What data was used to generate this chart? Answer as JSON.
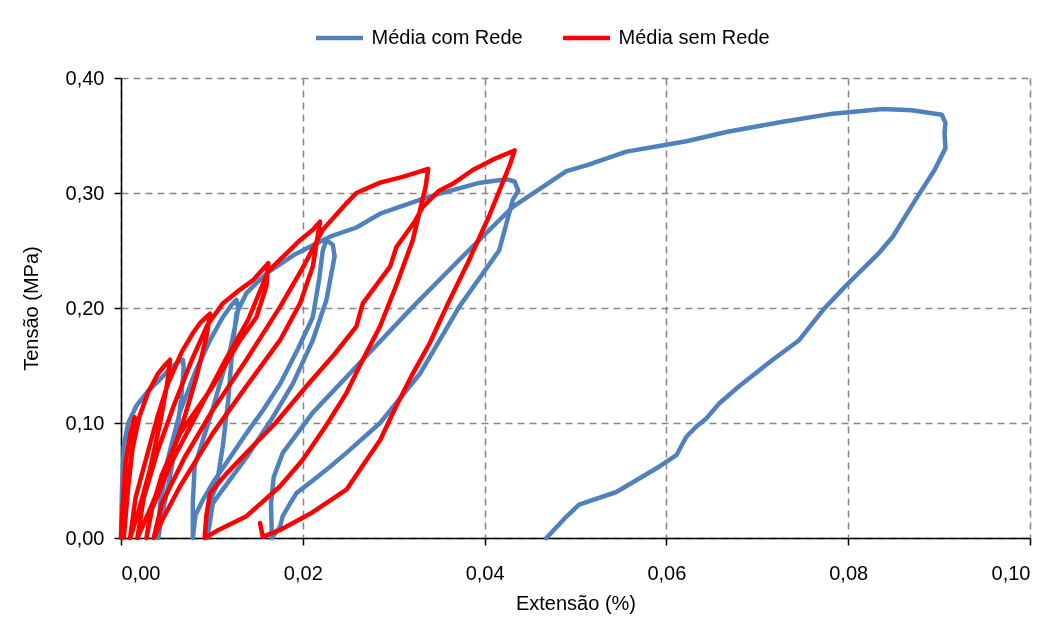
{
  "chart_data": {
    "type": "line",
    "xlabel": "Extensão (%)",
    "ylabel": "Tensão (MPa)",
    "xlim": [
      0,
      0.1
    ],
    "ylim": [
      0,
      0.4
    ],
    "xticks": [
      {
        "value": 0,
        "label": "0,00"
      },
      {
        "value": 0.02,
        "label": "0,02"
      },
      {
        "value": 0.04,
        "label": "0,04"
      },
      {
        "value": 0.06,
        "label": "0,06"
      },
      {
        "value": 0.08,
        "label": "0,08"
      },
      {
        "value": 0.1,
        "label": "0,10"
      }
    ],
    "yticks": [
      {
        "value": 0,
        "label": "0,00"
      },
      {
        "value": 0.1,
        "label": "0,10"
      },
      {
        "value": 0.2,
        "label": "0,20"
      },
      {
        "value": 0.3,
        "label": "0,30"
      },
      {
        "value": 0.4,
        "label": "0,40"
      }
    ],
    "grid": true,
    "legend": "top",
    "line_style": "solid",
    "series": [
      {
        "name": "Média com Rede",
        "color": "#4f81bd",
        "x": [
          0,
          0.0001,
          0.0003,
          0.0008,
          0.0017,
          0.003,
          0.0043,
          0.0055,
          0.0063,
          0.0068,
          0.0069,
          0.0066,
          0.006,
          0.0052,
          0.0045,
          0.0041,
          0.0043,
          0.0052,
          0.0065,
          0.0082,
          0.0098,
          0.0112,
          0.0122,
          0.0127,
          0.0129,
          0.0127,
          0.012,
          0.0112,
          0.01,
          0.009,
          0.0081,
          0.0079,
          0.0079,
          0.0082,
          0.009,
          0.0101,
          0.012,
          0.0138,
          0.0157,
          0.0175,
          0.0195,
          0.0211,
          0.0218,
          0.0222,
          0.0226,
          0.0233,
          0.0235,
          0.0226,
          0.0211,
          0.0189,
          0.0167,
          0.0138,
          0.0109,
          0.0101,
          0.0095,
          0.0097,
          0.0105,
          0.0112,
          0.0118,
          0.0122,
          0.0127,
          0.0138,
          0.016,
          0.019,
          0.0215,
          0.023,
          0.0259,
          0.0285,
          0.034,
          0.0395,
          0.0424,
          0.0433,
          0.0437,
          0.0431,
          0.0416,
          0.0372,
          0.0329,
          0.0285,
          0.0248,
          0.023,
          0.0211,
          0.0193,
          0.0186,
          0.0178,
          0.0175,
          0.0166,
          0.0165,
          0.0168,
          0.0178,
          0.0211,
          0.0266,
          0.0321,
          0.0376,
          0.0431,
          0.0471,
          0.049,
          0.0512,
          0.0556,
          0.06,
          0.0622,
          0.0666,
          0.0728,
          0.0783,
          0.0838,
          0.087,
          0.0903,
          0.0907,
          0.0906,
          0.0907,
          0.0895,
          0.0874,
          0.0849,
          0.0834,
          0.0797,
          0.0772,
          0.0746,
          0.0717,
          0.068,
          0.0658,
          0.0644,
          0.0633,
          0.0622,
          0.0611,
          0.0592,
          0.0545,
          0.0504,
          0.0488,
          0.0468
        ],
        "values": [
          0,
          0.04,
          0.08,
          0.1,
          0.115,
          0.128,
          0.138,
          0.148,
          0.153,
          0.155,
          0.148,
          0.12,
          0.08,
          0.045,
          0.02,
          0,
          0.03,
          0.07,
          0.11,
          0.145,
          0.172,
          0.192,
          0.203,
          0.207,
          0.2,
          0.19,
          0.163,
          0.143,
          0.11,
          0.085,
          0.062,
          0.03,
          0,
          0.02,
          0.033,
          0.048,
          0.07,
          0.091,
          0.112,
          0.134,
          0.165,
          0.192,
          0.225,
          0.25,
          0.259,
          0.255,
          0.245,
          0.207,
          0.172,
          0.134,
          0.105,
          0.07,
          0.039,
          0.03,
          0,
          0.03,
          0.045,
          0.08,
          0.12,
          0.16,
          0.195,
          0.213,
          0.23,
          0.246,
          0.256,
          0.262,
          0.27,
          0.282,
          0.297,
          0.309,
          0.312,
          0.31,
          0.302,
          0.294,
          0.25,
          0.201,
          0.143,
          0.1,
          0.074,
          0.062,
          0.05,
          0.039,
          0.03,
          0.019,
          0.01,
          0,
          0.03,
          0.053,
          0.074,
          0.109,
          0.155,
          0.201,
          0.245,
          0.288,
          0.309,
          0.319,
          0.324,
          0.336,
          0.342,
          0.345,
          0.353,
          0.362,
          0.369,
          0.373,
          0.372,
          0.368,
          0.361,
          0.352,
          0.339,
          0.32,
          0.294,
          0.262,
          0.248,
          0.219,
          0.198,
          0.172,
          0.155,
          0.132,
          0.117,
          0.104,
          0.097,
          0.088,
          0.072,
          0.062,
          0.04,
          0.029,
          0.017,
          0
        ]
      },
      {
        "name": "Média sem Rede",
        "color": "#ff0000",
        "x": [
          0,
          0.0002,
          0.0005,
          0.001,
          0.0015,
          0.0013,
          0.0008,
          0.0003,
          0.0006,
          0.0012,
          0.002,
          0.003,
          0.004,
          0.0048,
          0.0054,
          0.0051,
          0.0043,
          0.0032,
          0.002,
          0.001,
          0.0016,
          0.0028,
          0.004,
          0.0052,
          0.0067,
          0.0079,
          0.0087,
          0.0098,
          0.0094,
          0.0083,
          0.0068,
          0.005,
          0.0032,
          0.0018,
          0.0025,
          0.004,
          0.0058,
          0.0078,
          0.0095,
          0.0112,
          0.0131,
          0.0145,
          0.0162,
          0.016,
          0.0149,
          0.0131,
          0.0101,
          0.0065,
          0.0045,
          0.0032,
          0.0028,
          0.0034,
          0.0055,
          0.0085,
          0.0115,
          0.014,
          0.0162,
          0.0175,
          0.0197,
          0.0211,
          0.0219,
          0.0211,
          0.0197,
          0.0175,
          0.0138,
          0.0101,
          0.0065,
          0.0045,
          0.0036,
          0.0045,
          0.007,
          0.01,
          0.0138,
          0.0175,
          0.02,
          0.0222,
          0.0248,
          0.0259,
          0.0285,
          0.031,
          0.0338,
          0.0335,
          0.0321,
          0.0303,
          0.0285,
          0.0266,
          0.0248,
          0.0225,
          0.02,
          0.0175,
          0.0138,
          0.0105,
          0.0092,
          0.0094,
          0.0098,
          0.0116,
          0.0138,
          0.017,
          0.0204,
          0.0235,
          0.0259,
          0.0266,
          0.0296,
          0.0303,
          0.0323,
          0.0332,
          0.035,
          0.0365,
          0.0387,
          0.0409,
          0.0433,
          0.0428,
          0.0405,
          0.0382,
          0.0358,
          0.034,
          0.0321,
          0.0303,
          0.0285,
          0.0266,
          0.0248,
          0.021,
          0.0175,
          0.0156,
          0.0153
        ],
        "values": [
          0,
          0.03,
          0.065,
          0.09,
          0.105,
          0.08,
          0.045,
          0,
          0.04,
          0.075,
          0.105,
          0.127,
          0.142,
          0.15,
          0.155,
          0.135,
          0.1,
          0.06,
          0.025,
          0,
          0.035,
          0.07,
          0.105,
          0.135,
          0.162,
          0.178,
          0.187,
          0.195,
          0.175,
          0.14,
          0.1,
          0.06,
          0.025,
          0,
          0.035,
          0.075,
          0.115,
          0.155,
          0.185,
          0.204,
          0.216,
          0.224,
          0.239,
          0.219,
          0.192,
          0.172,
          0.132,
          0.091,
          0.055,
          0.02,
          0,
          0.025,
          0.065,
          0.11,
          0.155,
          0.19,
          0.232,
          0.242,
          0.259,
          0.268,
          0.275,
          0.236,
          0.204,
          0.172,
          0.132,
          0.091,
          0.045,
          0.015,
          0,
          0.03,
          0.07,
          0.11,
          0.155,
          0.201,
          0.235,
          0.268,
          0.291,
          0.3,
          0.309,
          0.314,
          0.321,
          0.305,
          0.259,
          0.22,
          0.184,
          0.155,
          0.126,
          0.097,
          0.068,
          0.045,
          0.019,
          0.006,
          0,
          0.02,
          0.039,
          0.056,
          0.074,
          0.1,
          0.132,
          0.16,
          0.184,
          0.204,
          0.236,
          0.253,
          0.275,
          0.288,
          0.302,
          0.308,
          0.32,
          0.329,
          0.337,
          0.325,
          0.28,
          0.24,
          0.201,
          0.17,
          0.143,
          0.115,
          0.085,
          0.063,
          0.042,
          0.022,
          0.007,
          0.001,
          0.013
        ]
      }
    ]
  }
}
